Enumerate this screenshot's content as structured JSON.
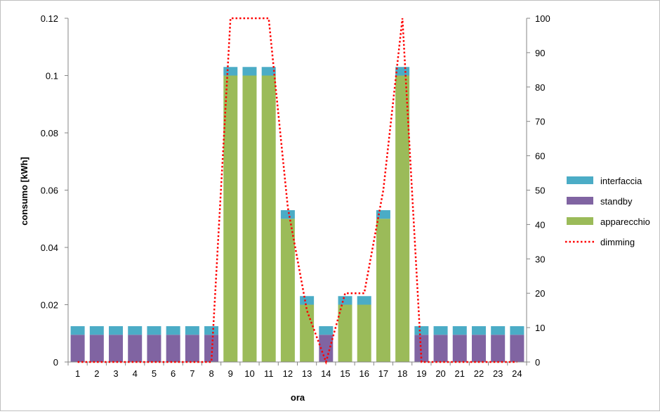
{
  "chart_data": {
    "type": "bar",
    "stacked": true,
    "xlabel": "ora",
    "ylabel": "consumo [kWh]",
    "y2label": "",
    "categories": [
      "1",
      "2",
      "3",
      "4",
      "5",
      "6",
      "7",
      "8",
      "9",
      "10",
      "11",
      "12",
      "13",
      "14",
      "15",
      "16",
      "17",
      "18",
      "19",
      "20",
      "21",
      "22",
      "23",
      "24"
    ],
    "ylim": [
      0,
      0.12
    ],
    "yticks": [
      "0",
      "0.02",
      "0.04",
      "0.06",
      "0.08",
      "0.1",
      "0.12"
    ],
    "y2lim": [
      0,
      100
    ],
    "y2ticks": [
      "0",
      "10",
      "20",
      "30",
      "40",
      "50",
      "60",
      "70",
      "80",
      "90",
      "100"
    ],
    "grid": false,
    "legend_position": "right",
    "series": [
      {
        "name": "standby",
        "kind": "bar",
        "color": "#8064a2",
        "values": [
          0.0095,
          0.0095,
          0.0095,
          0.0095,
          0.0095,
          0.0095,
          0.0095,
          0.0095,
          0,
          0,
          0,
          0,
          0,
          0.0095,
          0,
          0,
          0,
          0,
          0.0095,
          0.0095,
          0.0095,
          0.0095,
          0.0095,
          0.0095
        ]
      },
      {
        "name": "apparecchio",
        "kind": "bar",
        "color": "#9bbb59",
        "values": [
          0,
          0,
          0,
          0,
          0,
          0,
          0,
          0,
          0.1,
          0.1,
          0.1,
          0.05,
          0.02,
          0,
          0.02,
          0.02,
          0.05,
          0.1,
          0,
          0,
          0,
          0,
          0,
          0
        ]
      },
      {
        "name": "interfaccia",
        "kind": "bar",
        "color": "#4bacc6",
        "values": [
          0.003,
          0.003,
          0.003,
          0.003,
          0.003,
          0.003,
          0.003,
          0.003,
          0.003,
          0.003,
          0.003,
          0.003,
          0.003,
          0.003,
          0.003,
          0.003,
          0.003,
          0.003,
          0.003,
          0.003,
          0.003,
          0.003,
          0.003,
          0.003
        ]
      },
      {
        "name": "dimming",
        "kind": "line",
        "axis": "right",
        "color": "#ff0000",
        "dash": "dotted",
        "values": [
          0,
          0,
          0,
          0,
          0,
          0,
          0,
          0,
          100,
          100,
          100,
          45,
          15,
          0,
          20,
          20,
          50,
          100,
          0,
          0,
          0,
          0,
          0,
          0
        ]
      }
    ],
    "legend_order": [
      "interfaccia",
      "standby",
      "apparecchio",
      "dimming"
    ]
  }
}
